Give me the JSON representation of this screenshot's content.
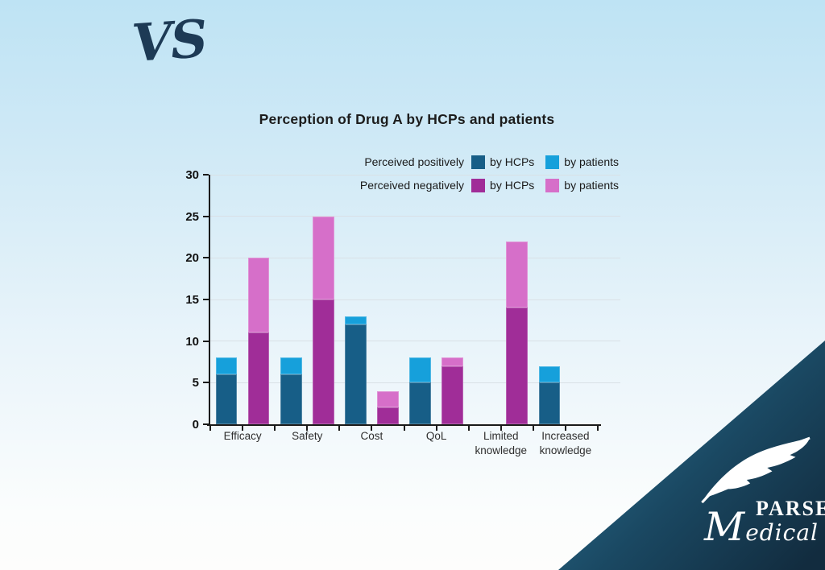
{
  "slide": {
    "vs_logo_text": "VS",
    "brand": {
      "line1": "PARSE",
      "line2": "Medical"
    }
  },
  "chart_data": {
    "type": "bar",
    "variant": "grouped-stacked",
    "title": "Perception of Drug A by HCPs and patients",
    "categories": [
      "Efficacy",
      "Safety",
      "Cost",
      "QoL",
      "Limited knowledge",
      "Increased knowledge"
    ],
    "series": [
      {
        "name": "Perceived positively by HCPs",
        "stack": "positive",
        "color": "#175E87",
        "values": [
          6,
          6,
          12,
          5,
          0,
          5
        ]
      },
      {
        "name": "Perceived positively by patients",
        "stack": "positive",
        "color": "#16A0DB",
        "values": [
          2,
          2,
          1,
          3,
          0,
          2
        ]
      },
      {
        "name": "Perceived negatively by HCPs",
        "stack": "negative",
        "color": "#A02D98",
        "values": [
          11,
          15,
          2,
          7,
          14,
          0
        ]
      },
      {
        "name": "Perceived negatively by patients",
        "stack": "negative",
        "color": "#D66FC9",
        "values": [
          9,
          10,
          2,
          1,
          8,
          0
        ]
      }
    ],
    "stack_totals": {
      "positive": [
        8,
        8,
        13,
        8,
        0,
        7
      ],
      "negative": [
        20,
        25,
        4,
        8,
        22,
        0
      ]
    },
    "ylim": [
      0,
      30
    ],
    "yticks": [
      0,
      5,
      10,
      15,
      20,
      25,
      30
    ],
    "grid": true,
    "legend_position": "top-right",
    "legend": {
      "rows": [
        {
          "label": "Perceived positively",
          "entries": [
            {
              "name": "by HCPs",
              "color": "#175E87"
            },
            {
              "name": "by patients",
              "color": "#16A0DB"
            }
          ]
        },
        {
          "label": "Perceived negatively",
          "entries": [
            {
              "name": "by HCPs",
              "color": "#A02D98"
            },
            {
              "name": "by patients",
              "color": "#D66FC9"
            }
          ]
        }
      ]
    }
  }
}
